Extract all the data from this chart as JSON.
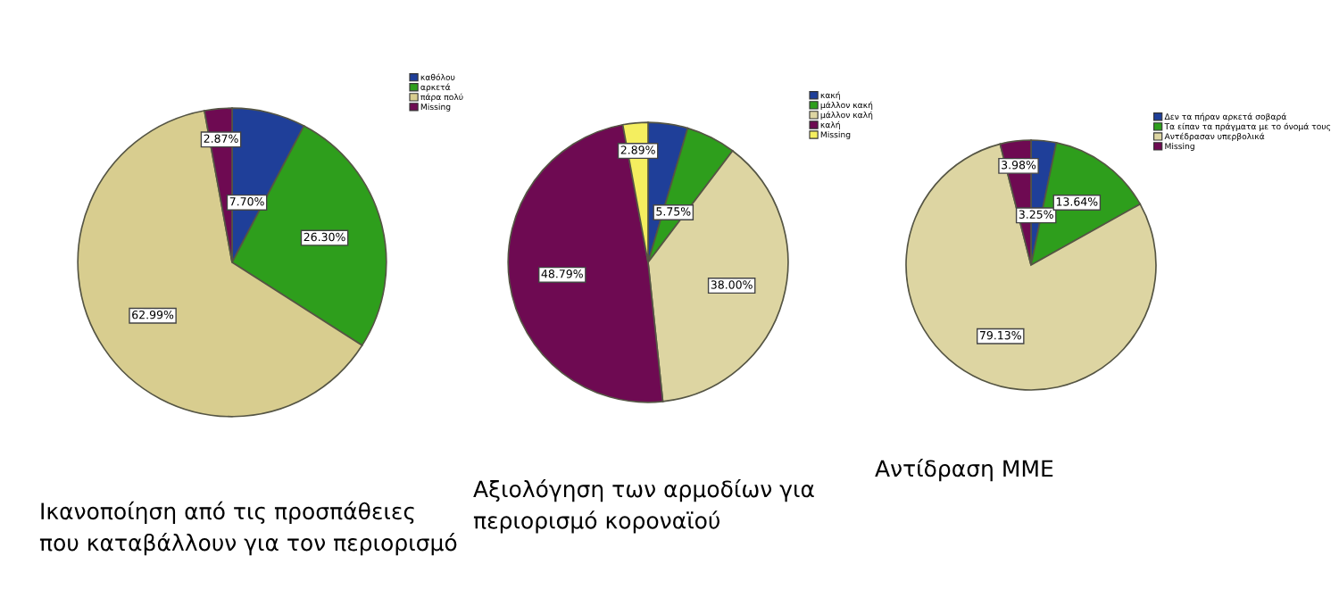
{
  "chart_data": [
    {
      "type": "pie",
      "title": "Ικανοποίηση από τις προσπάθειες\nπου καταβάλλουν για τον περιορισμό",
      "categories": [
        "καθόλου",
        "αρκετά",
        "πάρα πολύ",
        "Missing"
      ],
      "values": [
        7.7,
        26.3,
        62.99,
        2.87
      ],
      "value_labels": [
        "7.70%",
        "26.30%",
        "62.99%",
        "2.87%"
      ],
      "colors": [
        "#1f3f99",
        "#2e9e1c",
        "#d8cd8f",
        "#6e0a52"
      ],
      "legend": "top right"
    },
    {
      "type": "pie",
      "title": "Αξιολόγηση των αρμοδίων για\nπεριορισμό κοροναϊού",
      "categories": [
        "κακή",
        "μάλλον κακή",
        "μάλλον καλή",
        "καλή",
        "Missing"
      ],
      "values": [
        4.57,
        5.75,
        38.0,
        48.79,
        2.89
      ],
      "value_labels": [
        null,
        "5.75%",
        "38.00%",
        "48.79%",
        "2.89%"
      ],
      "colors": [
        "#1f3f99",
        "#2e9e1c",
        "#ddd5a2",
        "#6e0a52",
        "#f4ee5f"
      ],
      "legend": "top right"
    },
    {
      "type": "pie",
      "title": "Αντίδραση ΜΜΕ",
      "categories": [
        "Δεν τα πήραν αρκετά σοβαρά",
        "Τα είπαν τα πράγματα με το όνομά τους",
        "Αντέδρασαν υπερβολικά",
        "Missing"
      ],
      "values": [
        3.25,
        13.64,
        79.13,
        3.98
      ],
      "value_labels": [
        "3.25%",
        "13.64%",
        "79.13%",
        "3.98%"
      ],
      "colors": [
        "#1f3f99",
        "#2e9e1c",
        "#ddd5a2",
        "#6e0a52"
      ],
      "legend": "top right"
    }
  ]
}
